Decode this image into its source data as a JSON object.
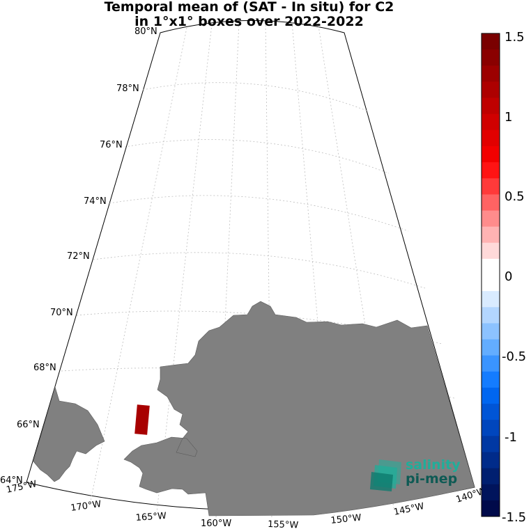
{
  "title": {
    "line1": "Temporal mean of (SAT - In situ) for C2",
    "line2": "in 1°x1° boxes over 2022-2022"
  },
  "latitude_labels": [
    "80°N",
    "78°N",
    "76°N",
    "74°N",
    "72°N",
    "70°N",
    "68°N",
    "66°N",
    "64°N"
  ],
  "longitude_labels": [
    "175°W",
    "170°W",
    "165°W",
    "160°W",
    "155°W",
    "150°W",
    "145°W",
    "140°W"
  ],
  "colorbar": {
    "ticks": [
      "1.5",
      "1",
      "0.5",
      "0",
      "-0.5",
      "-1",
      "-1.5"
    ],
    "range": [
      -1.5,
      1.5
    ],
    "colors": [
      "#7a0000",
      "#8a0000",
      "#9c0000",
      "#ad0000",
      "#bf0000",
      "#d00000",
      "#e20000",
      "#f20000",
      "#ff1414",
      "#ff3a3a",
      "#ff6363",
      "#ff8c8c",
      "#ffb3b3",
      "#ffd9d9",
      "#ffffff",
      "#ffffff",
      "#d9ebff",
      "#b3d6ff",
      "#8cc2ff",
      "#63adff",
      "#3a94ff",
      "#147cff",
      "#0066f0",
      "#0055d6",
      "#0046bd",
      "#0038a3",
      "#002b8a",
      "#001f70",
      "#00145c",
      "#000a4a"
    ]
  },
  "data_cells": [
    {
      "label": "box near 66°N 166°W",
      "value": 1.4,
      "color": "#a80000"
    }
  ],
  "land_color": "#808080",
  "logo": {
    "line1": "salinity",
    "line2": "pi-mep"
  }
}
